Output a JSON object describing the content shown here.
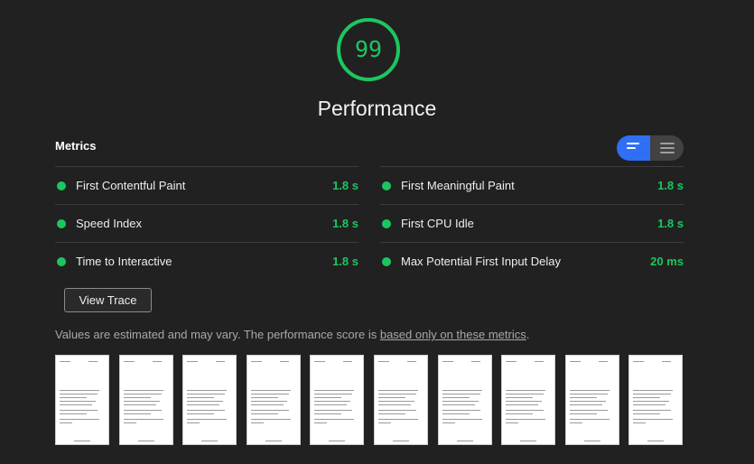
{
  "score": {
    "value": "99",
    "percent": 99,
    "color": "#1cc65f",
    "track_color": "#1a3b27"
  },
  "category": {
    "title": "Performance"
  },
  "metrics": {
    "title": "Metrics",
    "toggle": {
      "active": "summary-view",
      "left_icon": "list-summary-icon",
      "right_icon": "list-detail-icon"
    },
    "left": [
      {
        "label": "First Contentful Paint",
        "value": "1.8 s"
      },
      {
        "label": "Speed Index",
        "value": "1.8 s"
      },
      {
        "label": "Time to Interactive",
        "value": "1.8 s"
      }
    ],
    "right": [
      {
        "label": "First Meaningful Paint",
        "value": "1.8 s"
      },
      {
        "label": "First CPU Idle",
        "value": "1.8 s"
      },
      {
        "label": "Max Potential First Input Delay",
        "value": "20 ms"
      }
    ],
    "status_color": "#1cc65f"
  },
  "view_trace": {
    "label": "View Trace"
  },
  "note": {
    "prefix": "Values are estimated and may vary. The performance score is ",
    "link": "based only on these metrics",
    "suffix": "."
  },
  "filmstrip": {
    "frame_count": 10
  }
}
